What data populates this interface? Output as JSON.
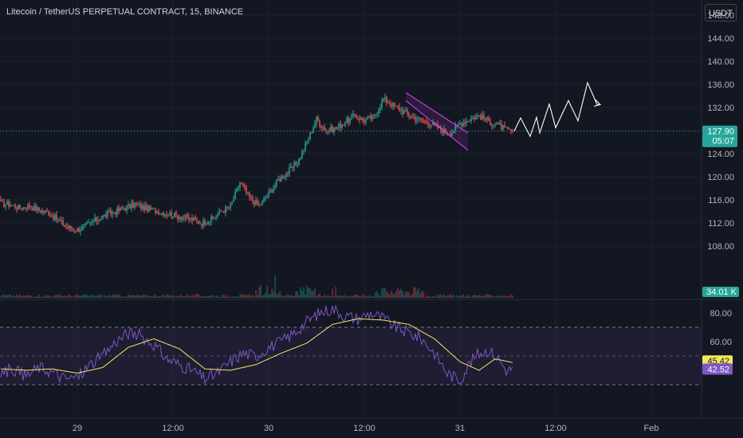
{
  "header": {
    "title": "Litecoin / TetherUS PERPETUAL CONTRACT, 15, BINANCE",
    "currency_button": "USDT"
  },
  "colors": {
    "background": "#131722",
    "up": "#26a69a",
    "down": "#ef5350",
    "rsi_line": "#7e57c2",
    "rsi_ma": "#f5e663",
    "channel": "#e040fb",
    "projection": "#ffffff",
    "grid": "#1e222d"
  },
  "price_axis": {
    "ticks": [
      "148.00",
      "144.00",
      "140.00",
      "136.00",
      "132.00",
      "128.00",
      "124.00",
      "120.00",
      "116.00",
      "112.00",
      "108.00"
    ],
    "last_price": "127.90",
    "countdown": "05:07",
    "volume_label": "34.01 K"
  },
  "rsi_axis": {
    "ticks": [
      "80.00",
      "60.00"
    ],
    "ma_value": "45.42",
    "rsi_value": "42.52",
    "upper_band": 70,
    "lower_band": 30
  },
  "time_axis": {
    "labels": [
      "29",
      "12:00",
      "30",
      "12:00",
      "31",
      "12:00",
      "Feb"
    ]
  },
  "chart_data": [
    {
      "type": "candlestick",
      "title": "Litecoin / TetherUS PERPETUAL CONTRACT, 15, BINANCE",
      "interval": "15",
      "ylim": [
        105,
        150
      ],
      "xlabels": [
        "29",
        "12:00",
        "30",
        "12:00",
        "31",
        "12:00",
        "Feb"
      ],
      "close_path": [
        [
          0,
          115.4
        ],
        [
          6,
          115.2
        ],
        [
          12,
          114.6
        ],
        [
          18,
          115.0
        ],
        [
          24,
          114.2
        ],
        [
          30,
          113.8
        ],
        [
          36,
          112.4
        ],
        [
          42,
          111.2
        ],
        [
          48,
          110.8
        ],
        [
          54,
          111.6
        ],
        [
          60,
          112.6
        ],
        [
          66,
          113.4
        ],
        [
          72,
          114.0
        ],
        [
          78,
          114.6
        ],
        [
          84,
          115.2
        ],
        [
          90,
          114.6
        ],
        [
          96,
          114.2
        ],
        [
          102,
          113.8
        ],
        [
          108,
          113.4
        ],
        [
          114,
          113.0
        ],
        [
          120,
          112.6
        ],
        [
          126,
          112.0
        ],
        [
          132,
          112.6
        ],
        [
          138,
          114.0
        ],
        [
          144,
          114.8
        ],
        [
          150,
          119.0
        ],
        [
          156,
          116.4
        ],
        [
          162,
          115.0
        ],
        [
          168,
          117.0
        ],
        [
          174,
          119.5
        ],
        [
          180,
          120.8
        ],
        [
          186,
          122.5
        ],
        [
          192,
          126.0
        ],
        [
          198,
          130.0
        ],
        [
          204,
          128.0
        ],
        [
          210,
          128.4
        ],
        [
          216,
          129.5
        ],
        [
          222,
          130.5
        ],
        [
          228,
          129.8
        ],
        [
          234,
          130.4
        ],
        [
          240,
          133.5
        ],
        [
          246,
          132.4
        ],
        [
          252,
          131.4
        ],
        [
          258,
          130.4
        ],
        [
          264,
          129.8
        ],
        [
          270,
          129.2
        ],
        [
          276,
          128.2
        ],
        [
          282,
          127.6
        ],
        [
          288,
          129.2
        ],
        [
          294,
          130.0
        ],
        [
          300,
          130.6
        ],
        [
          306,
          129.6
        ],
        [
          312,
          128.9
        ],
        [
          318,
          128.0
        ],
        [
          321,
          127.9
        ]
      ],
      "last": 127.9,
      "volume_last": "34.01 K",
      "annotations": [
        {
          "type": "descending-channel",
          "top": [
            [
              254,
              134.6
            ],
            [
              293,
              127.6
            ]
          ],
          "bottom": [
            [
              254,
              133.2
            ],
            [
              293,
              124.6
            ]
          ]
        },
        {
          "type": "projection-zigzag",
          "points": [
            [
              322,
              127.9
            ],
            [
              326,
              130.2
            ],
            [
              332,
              127.0
            ],
            [
              336,
              130.3
            ],
            [
              338,
              127.6
            ],
            [
              344,
              132.6
            ],
            [
              348,
              128.5
            ],
            [
              356,
              133.2
            ],
            [
              362,
              129.7
            ],
            [
              368,
              136.3
            ],
            [
              374,
              132.5
            ],
            [
              376,
              132.5
            ]
          ]
        }
      ]
    },
    {
      "type": "line",
      "title": "RSI",
      "ylim": [
        12,
        88
      ],
      "bands": [
        70,
        30
      ],
      "series": [
        {
          "values": [
            [
              0,
              38
            ],
            [
              8,
              41
            ],
            [
              16,
              36
            ],
            [
              24,
              42
            ],
            [
              32,
              39
            ],
            [
              40,
              34
            ],
            [
              48,
              35
            ],
            [
              56,
              44
            ],
            [
              64,
              50
            ],
            [
              72,
              60
            ],
            [
              80,
              66
            ],
            [
              88,
              64
            ],
            [
              96,
              58
            ],
            [
              104,
              48
            ],
            [
              112,
              44
            ],
            [
              120,
              40
            ],
            [
              128,
              34
            ],
            [
              136,
              38
            ],
            [
              144,
              46
            ],
            [
              152,
              52
            ],
            [
              160,
              50
            ],
            [
              168,
              56
            ],
            [
              176,
              60
            ],
            [
              184,
              66
            ],
            [
              192,
              74
            ],
            [
              200,
              80
            ],
            [
              208,
              83
            ],
            [
              216,
              78
            ],
            [
              224,
              76
            ],
            [
              232,
              80
            ],
            [
              240,
              76
            ],
            [
              248,
              70
            ],
            [
              256,
              66
            ],
            [
              264,
              62
            ],
            [
              272,
              52
            ],
            [
              280,
              38
            ],
            [
              288,
              33
            ],
            [
              294,
              45
            ],
            [
              300,
              52
            ],
            [
              306,
              54
            ],
            [
              312,
              48
            ],
            [
              318,
              39
            ],
            [
              321,
              42.52
            ]
          ]
        },
        {
          "values": [
            [
              0,
              41
            ],
            [
              16,
              40
            ],
            [
              32,
              41
            ],
            [
              48,
              38
            ],
            [
              64,
              42
            ],
            [
              80,
              56
            ],
            [
              96,
              62
            ],
            [
              112,
              55
            ],
            [
              128,
              41
            ],
            [
              144,
              40
            ],
            [
              160,
              44
            ],
            [
              176,
              52
            ],
            [
              192,
              59
            ],
            [
              208,
              72
            ],
            [
              224,
              76
            ],
            [
              240,
              75
            ],
            [
              256,
              72
            ],
            [
              272,
              62
            ],
            [
              288,
              46
            ],
            [
              300,
              40
            ],
            [
              310,
              48
            ],
            [
              321,
              45.42
            ]
          ]
        }
      ]
    }
  ]
}
